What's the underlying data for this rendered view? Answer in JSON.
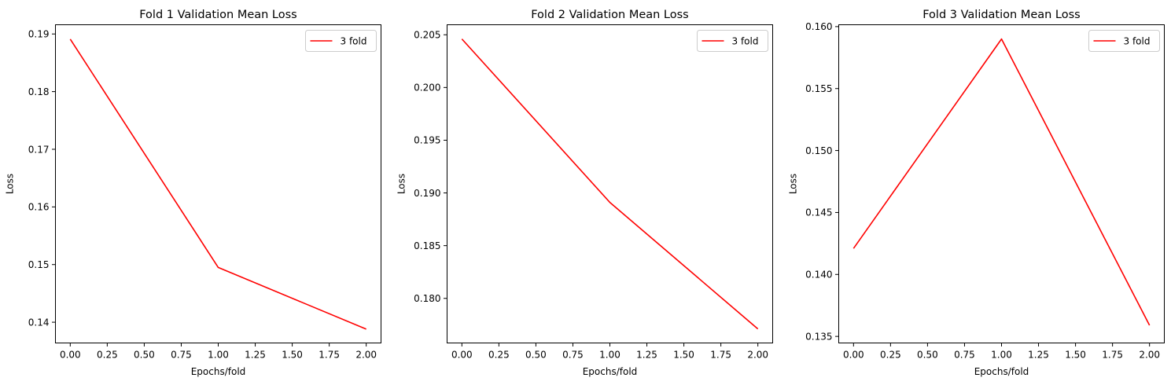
{
  "chart_data": [
    {
      "type": "line",
      "title": "Fold 1 Validation Mean Loss",
      "xlabel": "Epochs/fold",
      "ylabel": "Loss",
      "xlim": [
        -0.1,
        2.1
      ],
      "ylim": [
        0.1364,
        0.1916
      ],
      "xticks": [
        "0.00",
        "0.25",
        "0.50",
        "0.75",
        "1.00",
        "1.25",
        "1.50",
        "1.75",
        "2.00"
      ],
      "yticks": [
        "0.14",
        "0.15",
        "0.16",
        "0.17",
        "0.18",
        "0.19"
      ],
      "grid": false,
      "legend_position": "top-right",
      "series": [
        {
          "name": "3 fold",
          "color": "#ff0000",
          "x": [
            0,
            1,
            2
          ],
          "y": [
            0.1891,
            0.1495,
            0.1388
          ]
        }
      ]
    },
    {
      "type": "line",
      "title": "Fold 2 Validation Mean Loss",
      "xlabel": "Epochs/fold",
      "ylabel": "Loss",
      "xlim": [
        -0.1,
        2.1
      ],
      "ylim": [
        0.17577,
        0.20595
      ],
      "xticks": [
        "0.00",
        "0.25",
        "0.50",
        "0.75",
        "1.00",
        "1.25",
        "1.50",
        "1.75",
        "2.00"
      ],
      "yticks": [
        "0.180",
        "0.185",
        "0.190",
        "0.195",
        "0.200",
        "0.205"
      ],
      "grid": false,
      "legend_position": "top-right",
      "series": [
        {
          "name": "3 fold",
          "color": "#ff0000",
          "x": [
            0,
            1,
            2
          ],
          "y": [
            0.2046,
            0.1891,
            0.1771
          ]
        }
      ]
    },
    {
      "type": "line",
      "title": "Fold 3 Validation Mean Loss",
      "xlabel": "Epochs/fold",
      "ylabel": "Loss",
      "xlim": [
        -0.1,
        2.1
      ],
      "ylim": [
        0.13447,
        0.16015
      ],
      "xticks": [
        "0.00",
        "0.25",
        "0.50",
        "0.75",
        "1.00",
        "1.25",
        "1.50",
        "1.75",
        "2.00"
      ],
      "yticks": [
        "0.135",
        "0.140",
        "0.145",
        "0.150",
        "0.155",
        "0.160"
      ],
      "grid": false,
      "legend_position": "top-right",
      "series": [
        {
          "name": "3 fold",
          "color": "#ff0000",
          "x": [
            0,
            1,
            2
          ],
          "y": [
            0.1421,
            0.159,
            0.1359
          ]
        }
      ]
    }
  ]
}
